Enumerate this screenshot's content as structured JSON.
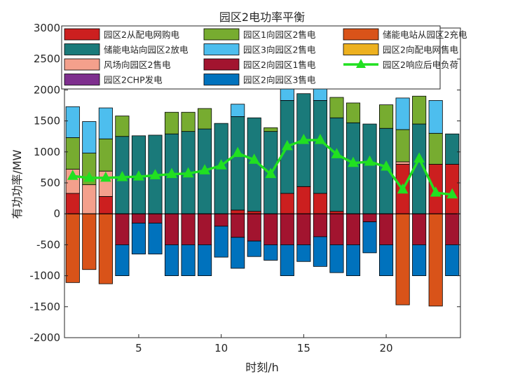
{
  "chart_data": {
    "type": "bar",
    "stacked": true,
    "title": "园区2电功率平衡",
    "xlabel": "时刻/h",
    "ylabel": "有功功率/MW",
    "xlim": [
      0.5,
      24.5
    ],
    "ylim": [
      -2000,
      3000
    ],
    "x": [
      1,
      2,
      3,
      4,
      5,
      6,
      7,
      8,
      9,
      10,
      11,
      12,
      13,
      14,
      15,
      16,
      17,
      18,
      19,
      20,
      21,
      22,
      23,
      24
    ],
    "xticks": [
      5,
      10,
      15,
      20
    ],
    "yticks": [
      -2000,
      -1500,
      -1000,
      -500,
      0,
      500,
      1000,
      1500,
      2000,
      2500,
      3000
    ],
    "grid": false,
    "legend_position": "top",
    "positive_series": [
      {
        "name": "园区2从配电网购电",
        "color": "#cc1f1f",
        "values": [
          330,
          0,
          280,
          0,
          0,
          0,
          0,
          0,
          0,
          0,
          60,
          40,
          0,
          330,
          440,
          330,
          40,
          0,
          0,
          0,
          800,
          0,
          800,
          800
        ]
      },
      {
        "name": "风场向园区2售电",
        "color": "#f4a08c",
        "values": [
          390,
          470,
          410,
          0,
          0,
          0,
          0,
          0,
          0,
          0,
          0,
          0,
          0,
          0,
          0,
          0,
          0,
          0,
          0,
          0,
          40,
          0,
          0,
          0
        ]
      },
      {
        "name": "园区2CHP发电",
        "color": "#7e2f8e",
        "values": [
          0,
          0,
          0,
          0,
          0,
          0,
          0,
          0,
          0,
          0,
          0,
          0,
          0,
          0,
          0,
          0,
          0,
          0,
          0,
          0,
          0,
          0,
          0,
          0
        ]
      },
      {
        "name": "储能电站向园区2放电",
        "color": "#1a7a7a",
        "values": [
          0,
          0,
          0,
          1250,
          1260,
          1270,
          1290,
          1330,
          1370,
          1460,
          1510,
          1510,
          1330,
          1500,
          1500,
          1500,
          1510,
          1470,
          1450,
          1380,
          0,
          1450,
          0,
          490
        ]
      },
      {
        "name": "园区1向园区2售电",
        "color": "#77ac30",
        "values": [
          510,
          510,
          520,
          330,
          0,
          0,
          350,
          310,
          330,
          0,
          0,
          0,
          60,
          0,
          0,
          0,
          330,
          320,
          0,
          380,
          520,
          450,
          500,
          0
        ]
      },
      {
        "name": "园区3向园区2售电",
        "color": "#4dbeee",
        "values": [
          500,
          510,
          500,
          0,
          0,
          0,
          0,
          0,
          0,
          0,
          200,
          0,
          0,
          240,
          0,
          190,
          0,
          0,
          0,
          0,
          510,
          0,
          530,
          0
        ]
      },
      {
        "name": "园区2向配电网售电",
        "color": "#edb120",
        "values": [
          0,
          0,
          0,
          0,
          0,
          0,
          0,
          0,
          0,
          0,
          0,
          0,
          0,
          0,
          0,
          0,
          0,
          0,
          0,
          0,
          0,
          0,
          0,
          0
        ]
      }
    ],
    "negative_series": [
      {
        "name": "储能电站从园区2充电",
        "color": "#d95319",
        "values": [
          -1110,
          -900,
          -1130,
          0,
          0,
          0,
          0,
          0,
          0,
          0,
          0,
          0,
          0,
          0,
          0,
          0,
          0,
          0,
          0,
          0,
          -1470,
          0,
          -1490,
          0
        ]
      },
      {
        "name": "园区2向园区1售电",
        "color": "#a2142f",
        "values": [
          0,
          0,
          0,
          -500,
          -150,
          -150,
          -500,
          -500,
          -500,
          -200,
          -380,
          -440,
          -500,
          -500,
          -500,
          -370,
          -500,
          -500,
          -130,
          -500,
          0,
          -500,
          0,
          -500
        ]
      },
      {
        "name": "园区2向园区3售电",
        "color": "#0072bd",
        "values": [
          0,
          0,
          0,
          -500,
          -500,
          -500,
          -500,
          -500,
          -500,
          -500,
          -500,
          -250,
          -250,
          -500,
          -270,
          -480,
          -450,
          -500,
          -500,
          -500,
          0,
          -500,
          0,
          -500
        ]
      }
    ],
    "line_series": {
      "name": "园区2响应后电负荷",
      "color": "#21e021",
      "values": [
        610,
        580,
        580,
        590,
        600,
        620,
        640,
        650,
        700,
        780,
        980,
        870,
        640,
        1090,
        1190,
        1190,
        960,
        820,
        840,
        760,
        390,
        890,
        340,
        310
      ]
    },
    "legend_order": [
      "园区2从配电网购电",
      "园区1向园区2售电",
      "储能电站从园区2充电",
      "储能电站向园区2放电",
      "园区3向园区2售电",
      "园区2向配电网售电",
      "风场向园区2售电",
      "园区2向园区1售电",
      "园区2响应后电负荷",
      "园区2CHP发电",
      "园区2向园区3售电"
    ]
  }
}
